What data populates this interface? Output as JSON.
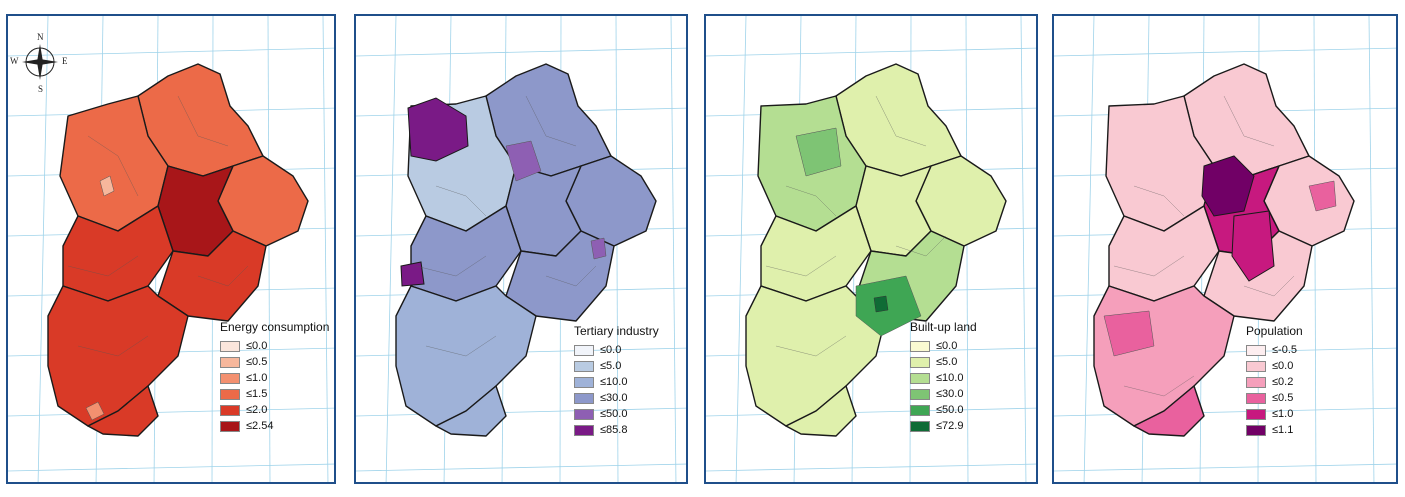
{
  "compass": {
    "n": "N",
    "s": "S",
    "e": "E",
    "w": "W"
  },
  "panels": [
    {
      "legend_title": "Energy consumption",
      "classes": [
        {
          "label": "≤0.0",
          "color": "#fbe6dc"
        },
        {
          "label": "≤0.5",
          "color": "#f7b79c"
        },
        {
          "label": "≤1.0",
          "color": "#f39070"
        },
        {
          "label": "≤1.5",
          "color": "#ec6a48"
        },
        {
          "label": "≤2.0",
          "color": "#d93a27"
        },
        {
          "label": "≤2.54",
          "color": "#a81619"
        }
      ]
    },
    {
      "legend_title": "Tertiary industry",
      "classes": [
        {
          "label": "≤0.0",
          "color": "#f1f4fa"
        },
        {
          "label": "≤5.0",
          "color": "#b9cbe2"
        },
        {
          "label": "≤10.0",
          "color": "#9fb2d8"
        },
        {
          "label": "≤30.0",
          "color": "#8d98ca"
        },
        {
          "label": "≤50.0",
          "color": "#8e5fb3"
        },
        {
          "label": "≤85.8",
          "color": "#7a1a86"
        }
      ]
    },
    {
      "legend_title": "Built-up land",
      "classes": [
        {
          "label": "≤0.0",
          "color": "#fafad2"
        },
        {
          "label": "≤5.0",
          "color": "#dff0ac"
        },
        {
          "label": "≤10.0",
          "color": "#b4de92"
        },
        {
          "label": "≤30.0",
          "color": "#7ec474"
        },
        {
          "label": "≤50.0",
          "color": "#3fa654"
        },
        {
          "label": "≤72.9",
          "color": "#0f6b35"
        }
      ]
    },
    {
      "legend_title": "Population",
      "classes": [
        {
          "label": "≤-0.5",
          "color": "#fdeef0"
        },
        {
          "label": "≤0.0",
          "color": "#f9c9d2"
        },
        {
          "label": "≤0.2",
          "color": "#f59fbb"
        },
        {
          "label": "≤0.5",
          "color": "#e9619e"
        },
        {
          "label": "≤1.0",
          "color": "#c7197f"
        },
        {
          "label": "≤1.1",
          "color": "#710066"
        }
      ]
    }
  ]
}
